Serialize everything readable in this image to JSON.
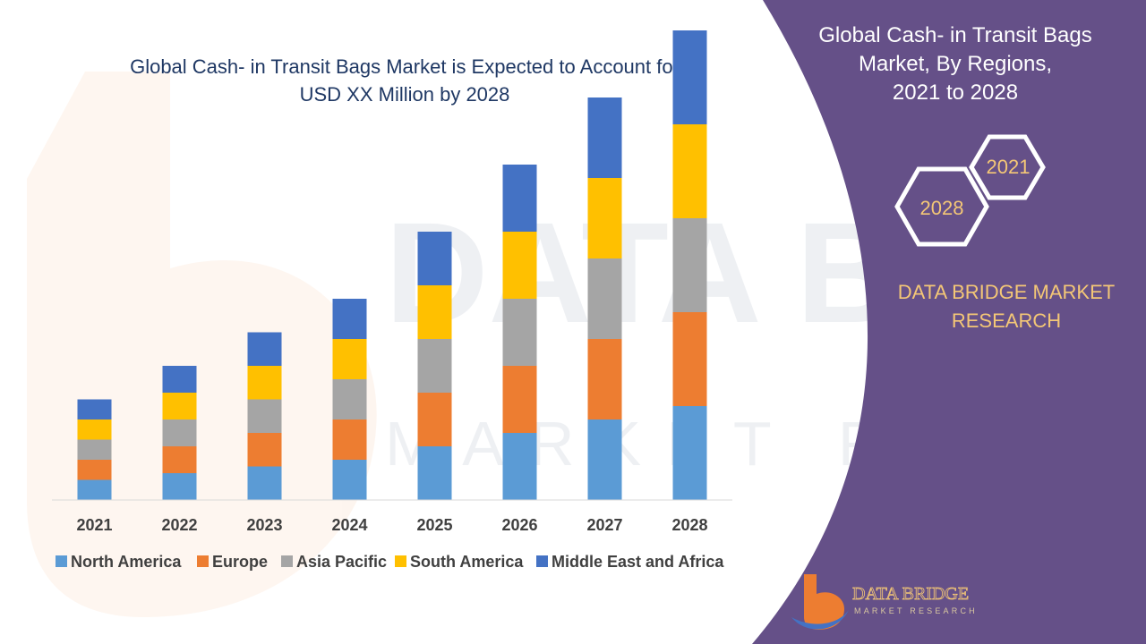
{
  "main": {
    "title_line1": "Global Cash- in Transit Bags Market is Expected to Account for",
    "title_line2": "USD XX Million by 2028"
  },
  "side_panel": {
    "title_line1": "Global Cash- in Transit Bags",
    "title_line2": "Market, By Regions,",
    "title_line3": "2021 to 2028",
    "hex_start": "2021",
    "hex_end": "2028",
    "brand_line1": "DATA BRIDGE MARKET",
    "brand_line2": "RESEARCH",
    "logo_text_line1": "DATA BRIDGE",
    "logo_text_line2": "MARKET RESEARCH"
  },
  "watermark": {
    "line1": "DATA BRIDGE",
    "line2": "MARKET RESEARCH"
  },
  "colors": {
    "panel": "#655088",
    "title_text": "#1f3864",
    "panel_text": "#ffffff",
    "brand_text": "#f4c776",
    "hex_stroke": "#ffffff"
  },
  "chart_data": {
    "type": "bar",
    "stacked": true,
    "categories": [
      "2021",
      "2022",
      "2023",
      "2024",
      "2025",
      "2026",
      "2027",
      "2028"
    ],
    "series": [
      {
        "name": "North America",
        "color": "#5b9bd5",
        "values": [
          3,
          4,
          5,
          6,
          8,
          10,
          12,
          14
        ]
      },
      {
        "name": "Europe",
        "color": "#ed7d31",
        "values": [
          3,
          4,
          5,
          6,
          8,
          10,
          12,
          14
        ]
      },
      {
        "name": "Asia Pacific",
        "color": "#a5a5a5",
        "values": [
          3,
          4,
          5,
          6,
          8,
          10,
          12,
          14
        ]
      },
      {
        "name": "South America",
        "color": "#ffc000",
        "values": [
          3,
          4,
          5,
          6,
          8,
          10,
          12,
          14
        ]
      },
      {
        "name": "Middle East and Africa",
        "color": "#4472c4",
        "values": [
          3,
          4,
          5,
          6,
          8,
          10,
          12,
          14
        ]
      }
    ],
    "ylim": [
      0,
      70
    ],
    "grid": false,
    "legend": "bottom",
    "title": "Global Cash- in Transit Bags Market is Expected to Account for USD XX Million by 2028"
  }
}
